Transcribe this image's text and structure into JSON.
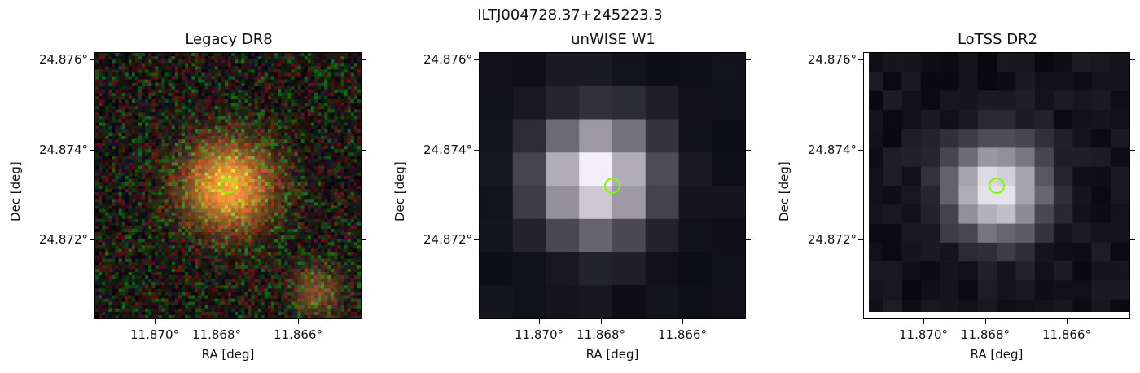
{
  "title": "ILTJ004728.37+245223.3",
  "panels": [
    {
      "title": "Legacy DR8",
      "kind": "optical-rgb"
    },
    {
      "title": "unWISE W1",
      "kind": "infrared-gray"
    },
    {
      "title": "LoTSS DR2",
      "kind": "radio-gray"
    }
  ],
  "axes": {
    "xlabel": "RA [deg]",
    "ylabel": "Dec [deg]",
    "xticks": [
      "11.870°",
      "11.868°",
      "11.866°"
    ],
    "yticks": [
      "24.876°",
      "24.874°",
      "24.872°"
    ]
  },
  "marker": {
    "color": "#7cfc00",
    "shape": "circle"
  }
}
